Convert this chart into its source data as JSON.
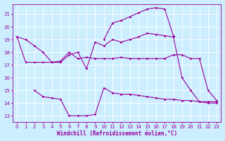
{
  "bg_color": "#cceeff",
  "line_color": "#990099",
  "grid_color": "#ffffff",
  "xlabel": "Windchill (Refroidissement éolien,°C)",
  "xlabel_color": "#990099",
  "ylabel_ticks": [
    13,
    14,
    15,
    16,
    17,
    18,
    19,
    20,
    21
  ],
  "xlim": [
    -0.5,
    23.5
  ],
  "ylim": [
    12.5,
    21.8
  ],
  "xticks": [
    0,
    1,
    2,
    3,
    4,
    5,
    6,
    7,
    8,
    9,
    10,
    11,
    12,
    13,
    14,
    15,
    16,
    17,
    18,
    19,
    20,
    21,
    22,
    23
  ],
  "series": [
    {
      "x": [
        0,
        1,
        2,
        3,
        4,
        5,
        6,
        7,
        8,
        9,
        10,
        11,
        12,
        13,
        14,
        15,
        16,
        17,
        18,
        19,
        20,
        21,
        22,
        23
      ],
      "y": [
        19.2,
        19.0,
        18.5,
        18.0,
        17.2,
        17.2,
        17.8,
        18.0,
        16.7,
        18.8,
        18.5,
        19.0,
        18.8,
        19.0,
        19.2,
        19.5,
        19.4,
        19.3,
        19.2,
        16.0,
        15.0,
        14.1,
        14.0,
        14.0
      ]
    },
    {
      "x": [
        0,
        1,
        2,
        3,
        4,
        5,
        6,
        7,
        8,
        9,
        10,
        11,
        12,
        13,
        14,
        15,
        16,
        17,
        18,
        19,
        20,
        21,
        22,
        23
      ],
      "y": [
        19.2,
        17.2,
        17.2,
        17.2,
        17.2,
        17.3,
        18.0,
        17.5,
        17.6,
        17.5,
        17.5,
        17.5,
        17.6,
        17.5,
        17.5,
        17.5,
        17.5,
        17.5,
        17.8,
        17.8,
        17.5,
        17.5,
        15.0,
        14.2
      ]
    },
    {
      "x": [
        2,
        3,
        4,
        5,
        6,
        7,
        8,
        9,
        10,
        11,
        12,
        13,
        14,
        15,
        16,
        17,
        18,
        19,
        20,
        21,
        22,
        23
      ],
      "y": [
        15.0,
        14.5,
        14.4,
        14.3,
        13.0,
        13.0,
        13.0,
        13.1,
        15.2,
        14.8,
        14.7,
        14.7,
        14.6,
        14.5,
        14.4,
        14.3,
        14.3,
        14.2,
        14.2,
        14.1,
        14.1,
        14.1
      ]
    },
    {
      "x": [
        10,
        11,
        12,
        13,
        14,
        15,
        16,
        17,
        18
      ],
      "y": [
        19.0,
        20.3,
        20.5,
        20.8,
        21.1,
        21.4,
        21.5,
        21.4,
        19.3
      ]
    }
  ]
}
